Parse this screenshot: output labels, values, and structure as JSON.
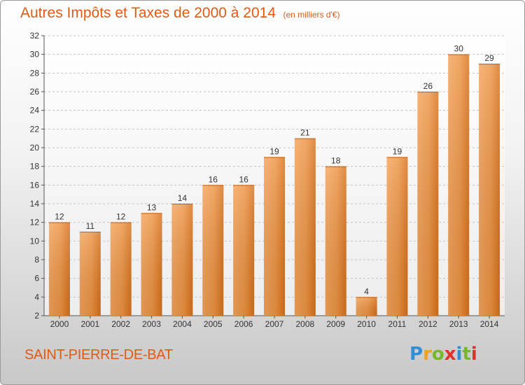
{
  "title": "Autres Impôts et Taxes de 2000 à 2014",
  "subtitle": "(en milliers d'€)",
  "town": "SAINT-PIERRE-DE-BAT",
  "logo": {
    "text": "Proxiti",
    "colors": [
      "#2f8fd8",
      "#f0a020",
      "#77b82a",
      "#e0302a",
      "#2f8fd8",
      "#77b82a",
      "#e0302a"
    ]
  },
  "colors": {
    "title": "#e05a14",
    "bar_light": "#f7a85a",
    "bar_dark": "#de7318",
    "axis": "#555555"
  },
  "chart_data": {
    "type": "bar",
    "title": "Autres Impôts et Taxes de 2000 à 2014",
    "subtitle": "(en milliers d'€)",
    "xlabel": "",
    "ylabel": "",
    "categories": [
      "2000",
      "2001",
      "2002",
      "2003",
      "2004",
      "2005",
      "2006",
      "2007",
      "2008",
      "2009",
      "2010",
      "2011",
      "2012",
      "2013",
      "2014"
    ],
    "values": [
      12,
      11,
      12,
      13,
      14,
      16,
      16,
      19,
      21,
      18,
      4,
      19,
      26,
      30,
      29
    ],
    "ylim": [
      2,
      32
    ],
    "yticks": [
      2,
      4,
      6,
      8,
      10,
      12,
      14,
      16,
      18,
      20,
      22,
      24,
      26,
      28,
      30,
      32
    ],
    "grid": "horizontal dashed",
    "legend": "none"
  }
}
